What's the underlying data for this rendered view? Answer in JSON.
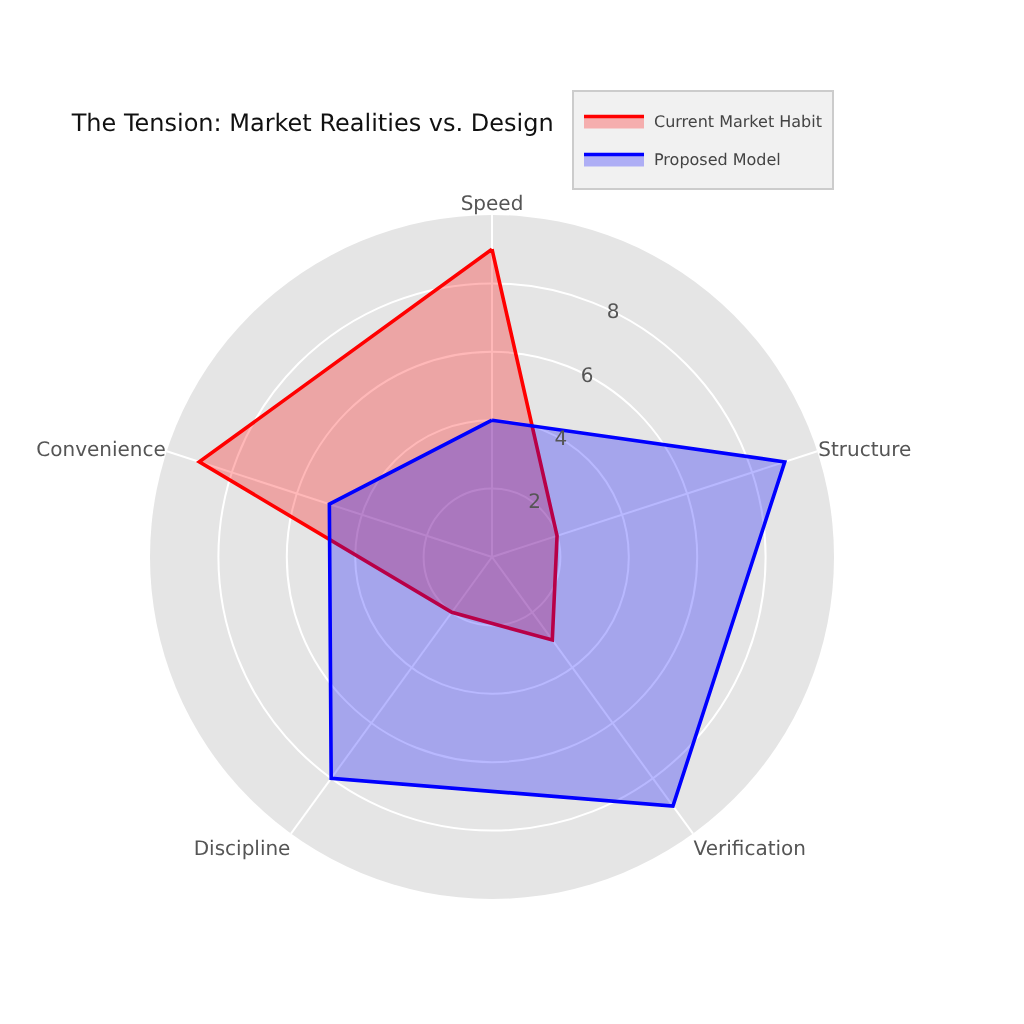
{
  "chart_data": {
    "type": "radar",
    "title": "The Tension: Market Realities vs. Design",
    "categories": [
      "Speed",
      "Structure",
      "Verification",
      "Discipline",
      "Convenience"
    ],
    "series": [
      {
        "name": "Current Market Habit",
        "color": "#ff0000",
        "values": [
          9,
          2,
          3,
          2,
          9
        ]
      },
      {
        "name": "Proposed Model",
        "color": "#0000ff",
        "values": [
          4,
          9,
          9,
          8,
          5
        ]
      }
    ],
    "ylim": [
      0,
      10
    ],
    "yticks": [
      2,
      4,
      6,
      8
    ],
    "grid": true,
    "legend": "top right"
  }
}
